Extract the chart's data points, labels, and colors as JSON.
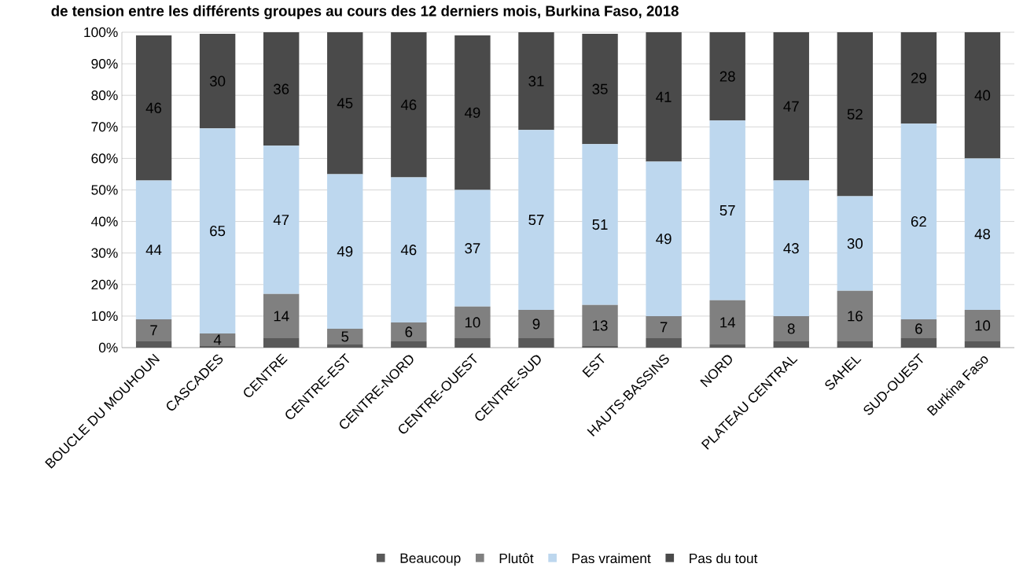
{
  "chart_data": {
    "type": "bar",
    "stacked": true,
    "title": "de tension entre les différents groupes au cours des 12 derniers mois, Burkina Faso, 2018",
    "categories": [
      "BOUCLE DU MOUHOUN",
      "CASCADES",
      "CENTRE",
      "CENTRE-EST",
      "CENTRE-NORD",
      "CENTRE-OUEST",
      "CENTRE-SUD",
      "EST",
      "HAUTS-BASSINS",
      "NORD",
      "PLATEAU CENTRAL",
      "SAHEL",
      "SUD-OUEST",
      "Burkina Faso"
    ],
    "series": [
      {
        "name": "Beaucoup",
        "color": "#595959",
        "values": [
          2,
          0.5,
          3,
          1,
          2,
          3,
          3,
          0.5,
          3,
          1,
          2,
          2,
          3,
          2
        ],
        "value_labels": [
          null,
          null,
          null,
          null,
          null,
          null,
          null,
          null,
          null,
          null,
          null,
          null,
          null,
          null
        ]
      },
      {
        "name": "Plutôt",
        "color": "#808080",
        "values": [
          7,
          4,
          14,
          5,
          6,
          10,
          9,
          13,
          7,
          14,
          8,
          16,
          6,
          10
        ],
        "value_labels": [
          "7",
          "4",
          "14",
          "5",
          "6",
          "10",
          "9",
          "13",
          "7",
          "14",
          "8",
          "16",
          "6",
          "10"
        ]
      },
      {
        "name": "Pas vraiment",
        "color": "#bdd7ee",
        "values": [
          44,
          65,
          47,
          49,
          46,
          37,
          57,
          51,
          49,
          57,
          43,
          30,
          62,
          48
        ],
        "value_labels": [
          "44",
          "65",
          "47",
          "49",
          "46",
          "37",
          "57",
          "51",
          "49",
          "57",
          "43",
          "30",
          "62",
          "48"
        ]
      },
      {
        "name": "Pas du tout",
        "color": "#4a4a4a",
        "values": [
          46,
          30,
          36,
          45,
          46,
          49,
          31,
          35,
          41,
          28,
          47,
          52,
          29,
          40
        ],
        "value_labels": [
          "46",
          "30",
          "36",
          "45",
          "46",
          "49",
          "31",
          "35",
          "41",
          "28",
          "47",
          "52",
          "29",
          "40"
        ]
      }
    ],
    "ylim": [
      0,
      100
    ],
    "yticks": [
      {
        "value": 0,
        "label": "0%"
      },
      {
        "value": 10,
        "label": "10%"
      },
      {
        "value": 20,
        "label": "20%"
      },
      {
        "value": 30,
        "label": "30%"
      },
      {
        "value": 40,
        "label": "40%"
      },
      {
        "value": 50,
        "label": "50%"
      },
      {
        "value": 60,
        "label": "60%"
      },
      {
        "value": 70,
        "label": "70%"
      },
      {
        "value": 80,
        "label": "80%"
      },
      {
        "value": 90,
        "label": "90%"
      },
      {
        "value": 100,
        "label": "100%"
      }
    ],
    "grid": "y",
    "legend": "bottom"
  }
}
